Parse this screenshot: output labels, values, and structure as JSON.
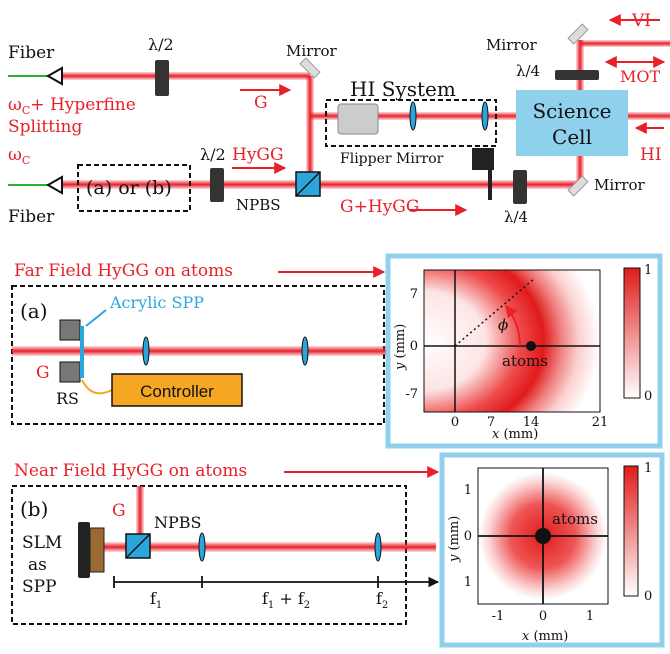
{
  "top": {
    "fiber_top": "Fiber",
    "fiber_bottom": "Fiber",
    "hwp_top": "λ/2",
    "hwp_mid": "λ/2",
    "mirror_top": "Mirror",
    "mirror_right_top": "Mirror",
    "mirror_right_bottom": "Mirror",
    "qwp_top": "λ/4",
    "qwp_bottom": "λ/4",
    "omega_top": "ω",
    "omega_sub": "C",
    "hyperfine_line1": "+ Hyperfine",
    "hyperfine_line2": "Splitting",
    "omega_mid": "ω",
    "omega_mid_sub": "C",
    "box_label": "(a) or (b)",
    "npbs": "NPBS",
    "g_label": "G",
    "hygg_label": "HyGG",
    "g_hygg_label": "G+HyGG",
    "hi_system": "HI System",
    "flipper": "Flipper Mirror",
    "science_line1": "Science",
    "science_line2": "Cell",
    "vi": "VI",
    "mot": "MOT",
    "hi": "HI"
  },
  "panel_a": {
    "title": "Far Field HyGG on atoms",
    "tag": "(a)",
    "spp": "Acrylic SPP",
    "g": "G",
    "rs": "RS",
    "controller": "Controller"
  },
  "panel_b": {
    "title": "Near Field HyGG on atoms",
    "tag": "(b)",
    "g": "G",
    "npbs": "NPBS",
    "slm_line1": "SLM",
    "slm_line2": "as",
    "slm_line3": "SPP",
    "f1": "f",
    "f1_sub": "1",
    "f12": "f",
    "f12_sub1": "1",
    "f12_plus": " + f",
    "f12_sub2": "2",
    "f2": "f",
    "f2_sub": "2"
  },
  "plot_a": {
    "ylabel_var": "y",
    "ylabel_unit": " (mm)",
    "xlabel_var": "x",
    "xlabel_unit": " (mm)",
    "xticks": [
      "0",
      "7",
      "14",
      "21"
    ],
    "yticks": [
      "7",
      "0",
      "-7"
    ],
    "phi": "ϕ",
    "atoms": "atoms",
    "cbar_max": "1",
    "cbar_min": "0"
  },
  "plot_b": {
    "ylabel_var": "y",
    "ylabel_unit": " (mm)",
    "xlabel_var": "x",
    "xlabel_unit": " (mm)",
    "xticks": [
      "-1",
      "0",
      "1"
    ],
    "yticks": [
      "1",
      "0",
      "1"
    ],
    "atoms": "atoms",
    "cbar_max": "1",
    "cbar_min": "0"
  },
  "colors": {
    "beam": "#e8202a",
    "accent_blue": "#8fd0ec",
    "npbs_blue": "#2aa6dd",
    "controller": "#f5a623"
  }
}
